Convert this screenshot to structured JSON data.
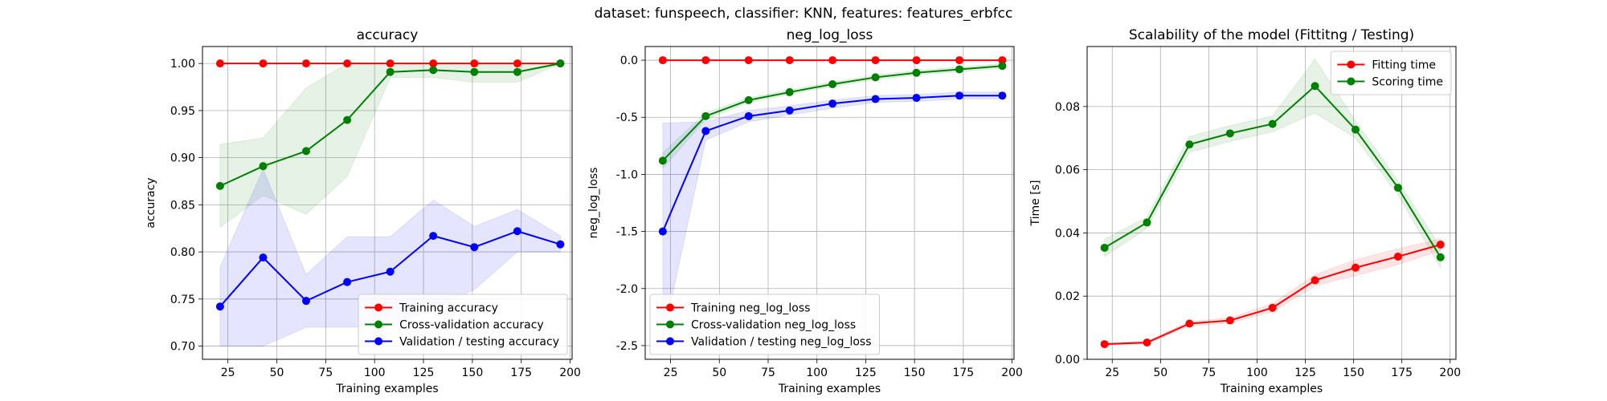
{
  "figure": {
    "suptitle": "dataset: funspeech, classifier: KNN, features: features_erbfcc"
  },
  "chart_data": [
    {
      "type": "line",
      "title": "accuracy",
      "xlabel": "Training examples",
      "ylabel": "accuracy",
      "xlim": [
        12,
        201
      ],
      "ylim": [
        0.686,
        1.018
      ],
      "xticks": [
        25,
        50,
        75,
        100,
        125,
        150,
        175,
        200
      ],
      "yticks": [
        0.7,
        0.75,
        0.8,
        0.85,
        0.9,
        0.95,
        1.0
      ],
      "ytick_decimals": 2,
      "grid": true,
      "legend_position": "lower-right",
      "x": [
        21,
        43,
        65,
        86,
        108,
        130,
        151,
        173,
        195
      ],
      "series": [
        {
          "name": "Training accuracy",
          "color": "#ff0000",
          "values": [
            1.0,
            1.0,
            1.0,
            1.0,
            1.0,
            1.0,
            1.0,
            1.0,
            1.0
          ],
          "lower": [
            1.0,
            1.0,
            1.0,
            1.0,
            1.0,
            1.0,
            1.0,
            1.0,
            1.0
          ],
          "upper": [
            1.0,
            1.0,
            1.0,
            1.0,
            1.0,
            1.0,
            1.0,
            1.0,
            1.0
          ]
        },
        {
          "name": "Cross-validation accuracy",
          "color": "#008000",
          "values": [
            0.87,
            0.891,
            0.907,
            0.94,
            0.991,
            0.993,
            0.991,
            0.991,
            1.0
          ],
          "lower": [
            0.826,
            0.86,
            0.84,
            0.88,
            0.985,
            0.985,
            0.98,
            0.98,
            1.0
          ],
          "upper": [
            0.914,
            0.921,
            0.974,
            1.0,
            0.998,
            1.0,
            1.0,
            1.0,
            1.0
          ]
        },
        {
          "name": "Validation / testing accuracy",
          "color": "#0000ff",
          "values": [
            0.742,
            0.794,
            0.748,
            0.768,
            0.779,
            0.817,
            0.805,
            0.822,
            0.808
          ],
          "lower": [
            0.7,
            0.7,
            0.72,
            0.72,
            0.72,
            0.74,
            0.76,
            0.8,
            0.8
          ],
          "upper": [
            0.784,
            0.888,
            0.776,
            0.816,
            0.816,
            0.855,
            0.827,
            0.845,
            0.817
          ]
        }
      ]
    },
    {
      "type": "line",
      "title": "neg_log_loss",
      "xlabel": "Training examples",
      "ylabel": "neg_log_loss",
      "xlim": [
        12,
        201
      ],
      "ylim": [
        -2.62,
        0.12
      ],
      "xticks": [
        25,
        50,
        75,
        100,
        125,
        150,
        175,
        200
      ],
      "yticks": [
        -2.5,
        -2.0,
        -1.5,
        -1.0,
        -0.5,
        0.0
      ],
      "ytick_decimals": 1,
      "grid": true,
      "legend_position": "lower-left",
      "x": [
        21,
        43,
        65,
        86,
        108,
        130,
        151,
        173,
        195
      ],
      "series": [
        {
          "name": "Training neg_log_loss",
          "color": "#ff0000",
          "values": [
            0,
            0,
            0,
            0,
            0,
            0,
            0,
            0,
            0
          ],
          "lower": [
            0,
            0,
            0,
            0,
            0,
            0,
            0,
            0,
            0
          ],
          "upper": [
            0,
            0,
            0,
            0,
            0,
            0,
            0,
            0,
            0
          ]
        },
        {
          "name": "Cross-validation neg_log_loss",
          "color": "#008000",
          "values": [
            -0.88,
            -0.49,
            -0.35,
            -0.28,
            -0.21,
            -0.15,
            -0.11,
            -0.08,
            -0.05
          ],
          "lower": [
            -0.95,
            -0.52,
            -0.37,
            -0.3,
            -0.23,
            -0.17,
            -0.13,
            -0.1,
            -0.07
          ],
          "upper": [
            -0.81,
            -0.46,
            -0.33,
            -0.26,
            -0.19,
            -0.13,
            -0.09,
            -0.06,
            -0.03
          ]
        },
        {
          "name": "Validation / testing neg_log_loss",
          "color": "#0000ff",
          "values": [
            -1.5,
            -0.62,
            -0.49,
            -0.44,
            -0.38,
            -0.34,
            -0.33,
            -0.31,
            -0.31
          ],
          "lower": [
            -2.45,
            -0.7,
            -0.54,
            -0.48,
            -0.42,
            -0.37,
            -0.36,
            -0.34,
            -0.34
          ],
          "upper": [
            -0.55,
            -0.54,
            -0.44,
            -0.4,
            -0.35,
            -0.31,
            -0.3,
            -0.28,
            -0.28
          ]
        }
      ]
    },
    {
      "type": "line",
      "title": "Scalability of the model (Fittitng / Testing)",
      "xlabel": "Training examples",
      "ylabel": "Time [s]",
      "xlim": [
        12,
        203
      ],
      "ylim": [
        0,
        0.099
      ],
      "xticks": [
        25,
        50,
        75,
        100,
        125,
        150,
        175,
        200
      ],
      "yticks": [
        0.0,
        0.02,
        0.04,
        0.06,
        0.08
      ],
      "ytick_decimals": 2,
      "grid": true,
      "legend_position": "top-right",
      "x": [
        21,
        43,
        65,
        86,
        108,
        130,
        151,
        173,
        195
      ],
      "series": [
        {
          "name": "Fitting time",
          "color": "#ff0000",
          "values": [
            0.0048,
            0.0053,
            0.0113,
            0.0123,
            0.0163,
            0.025,
            0.029,
            0.0325,
            0.0363
          ],
          "lower": [
            0.0045,
            0.0049,
            0.0106,
            0.0115,
            0.015,
            0.0232,
            0.0265,
            0.03,
            0.0345
          ],
          "upper": [
            0.0051,
            0.0057,
            0.012,
            0.0131,
            0.0176,
            0.0268,
            0.0315,
            0.035,
            0.0381
          ]
        },
        {
          "name": "Scoring time",
          "color": "#008000",
          "values": [
            0.0353,
            0.0433,
            0.068,
            0.0715,
            0.0745,
            0.0865,
            0.0727,
            0.0543,
            0.0323
          ],
          "lower": [
            0.0325,
            0.0415,
            0.0655,
            0.069,
            0.072,
            0.078,
            0.07,
            0.052,
            0.029
          ],
          "upper": [
            0.038,
            0.045,
            0.0705,
            0.074,
            0.077,
            0.095,
            0.0755,
            0.0565,
            0.0355
          ]
        }
      ]
    }
  ]
}
